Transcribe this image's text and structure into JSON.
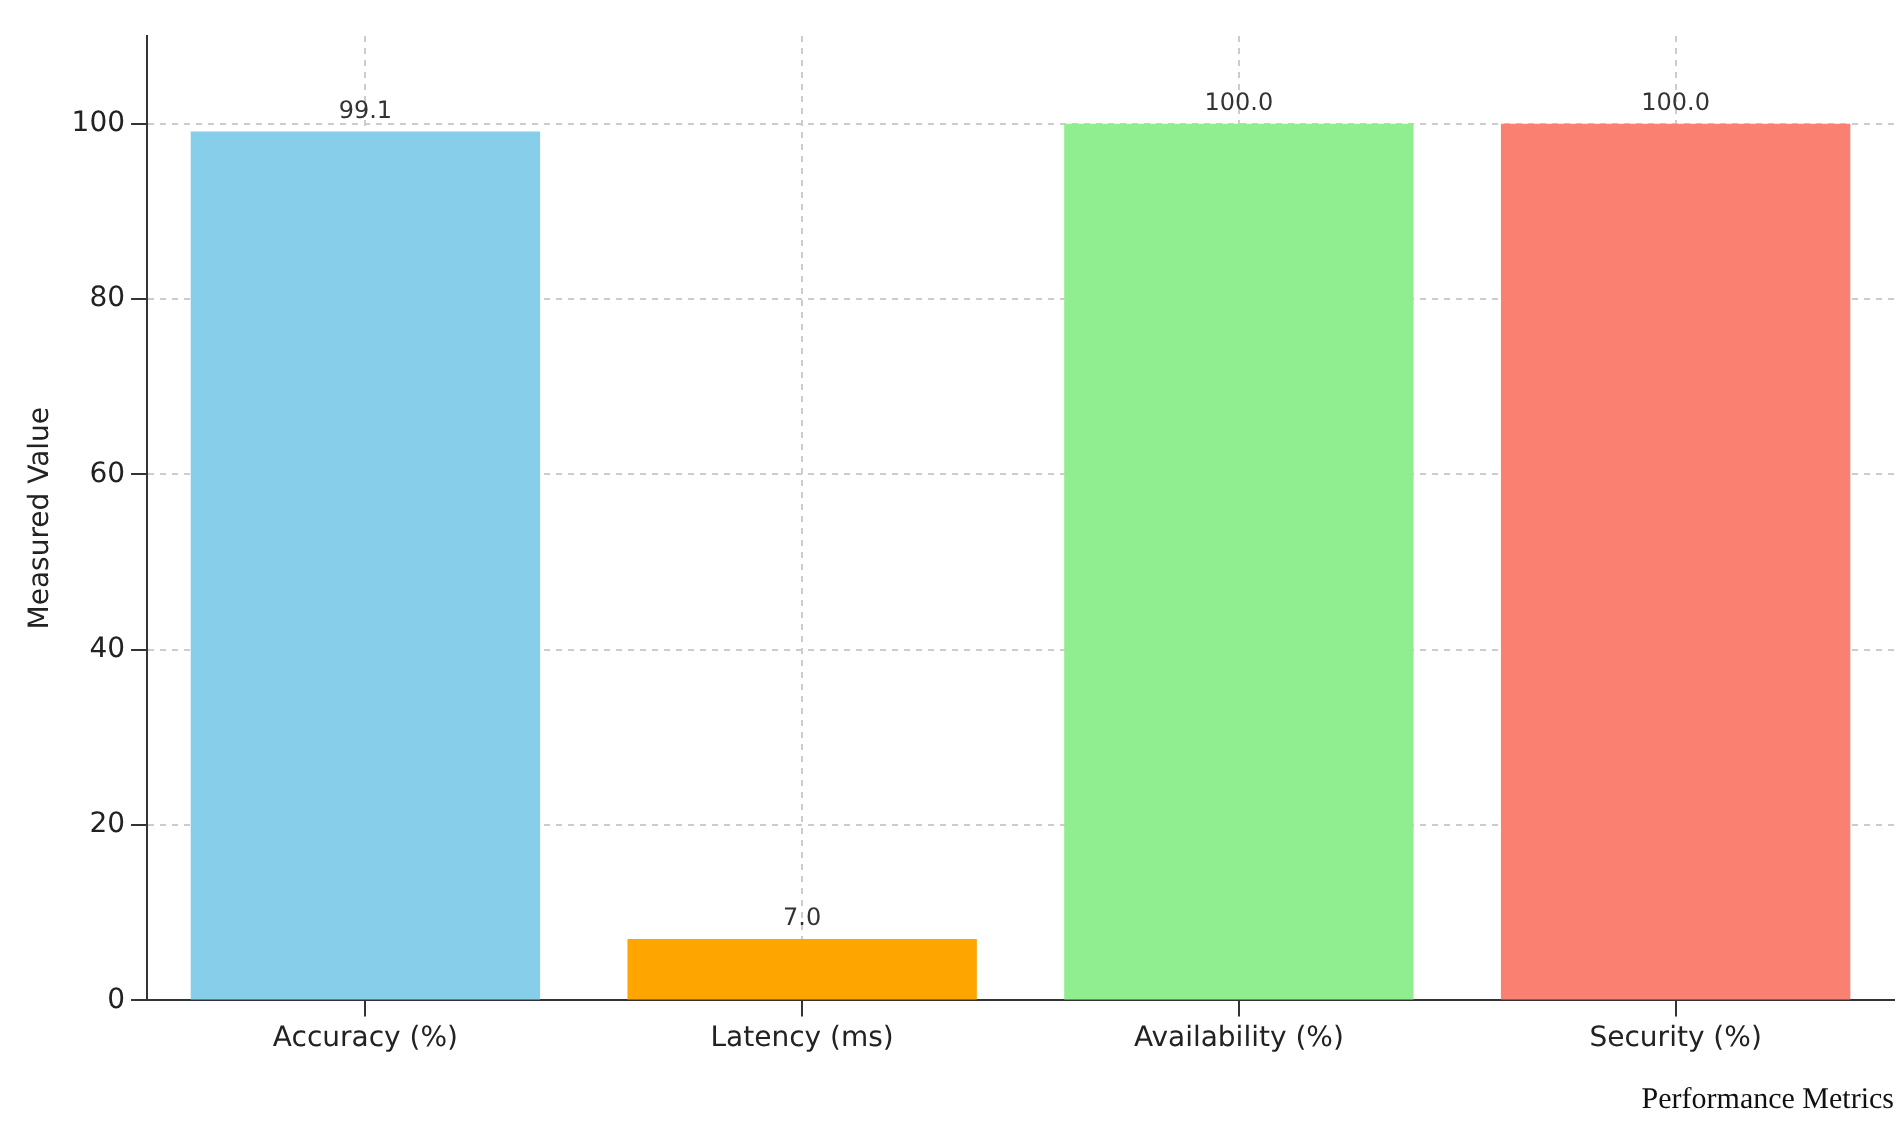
{
  "chart_data": {
    "type": "bar",
    "xlabel": "Performance Metrics",
    "ylabel": "Measured Value",
    "categories": [
      "Accuracy (%)",
      "Latency (ms)",
      "Availability (%)",
      "Security (%)"
    ],
    "values": [
      99.1,
      7.0,
      100.0,
      100.0
    ],
    "colors": [
      "#87ceeb",
      "#ffa500",
      "#90ee90",
      "#fa8072"
    ],
    "value_labels": [
      "99.1",
      "7.0",
      "100.0",
      "100.0"
    ],
    "ylim": [
      0,
      110
    ],
    "yticks": [
      0,
      20,
      40,
      60,
      80,
      100
    ],
    "grid": true
  }
}
